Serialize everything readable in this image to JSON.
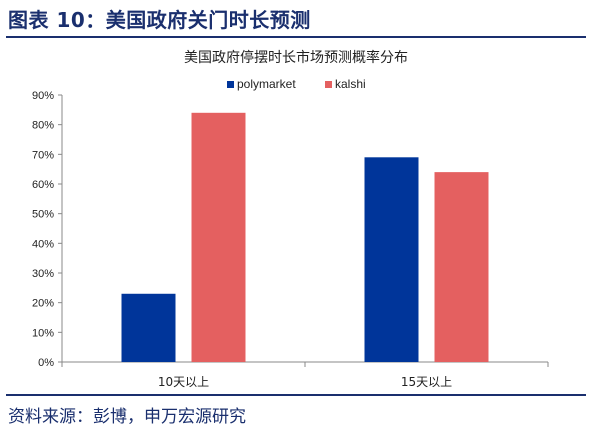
{
  "figure_title": "图表 10：美国政府关门时长预测",
  "source": "资料来源：彭博，申万宏源研究",
  "colors": {
    "primary": "#1a2f6e"
  },
  "chart_data": {
    "type": "bar",
    "title": "美国政府停摆时长市场预测概率分布",
    "categories": [
      "10天以上",
      "15天以上"
    ],
    "series": [
      {
        "name": "polymarket",
        "color": "#00359a",
        "values": [
          23,
          69
        ]
      },
      {
        "name": "kalshi",
        "color": "#e46060",
        "values": [
          84,
          64
        ]
      }
    ],
    "y_ticks": [
      "0%",
      "10%",
      "20%",
      "30%",
      "40%",
      "50%",
      "60%",
      "70%",
      "80%",
      "90%"
    ],
    "ylim": [
      0,
      90
    ],
    "y_unit": "%",
    "grid": false,
    "legend_position": "top-right"
  }
}
